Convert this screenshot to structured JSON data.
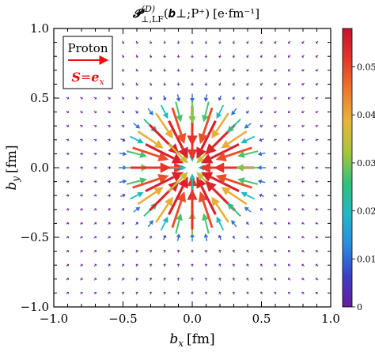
{
  "chart_data": {
    "type": "quiver",
    "title": {
      "symbol": "𝓟",
      "superscript": "(D)",
      "subscript": "⊥,LF",
      "arguments": "(𝒃⊥;P⁺)",
      "units": "[e·fm⁻¹]"
    },
    "xlabel": {
      "symbol": "b",
      "subscript": "x",
      "units": "[fm]"
    },
    "ylabel": {
      "symbol": "b",
      "subscript": "y",
      "units": "[fm]"
    },
    "xlim": [
      -1.0,
      1.0
    ],
    "ylim": [
      -1.0,
      1.0
    ],
    "x_ticks": [
      "−1.0",
      "−0.5",
      "0.0",
      "0.5",
      "1.0"
    ],
    "y_ticks": [
      "1.0",
      "0.5",
      "0.0",
      "−0.5",
      "−1.0"
    ],
    "grid": false,
    "legend": {
      "label": "Proton",
      "spin_symbol": "S",
      "spin_equals": "=",
      "spin_vector": "e",
      "spin_vector_subscript": "x",
      "arrow_color": "#ee1111",
      "spin_color": "#dd1111",
      "placement": "top-left"
    },
    "vector_field": {
      "grid_x_range": [
        -0.9,
        0.9
      ],
      "grid_y_range": [
        -0.9,
        0.9
      ],
      "grid_step": 0.1,
      "center": [
        0.0,
        0.0
      ],
      "direction": "radially inward, toward the origin",
      "max_magnitude_radius_fm": 0.25,
      "peak_magnitude": 0.056,
      "description": "Arrows point toward the origin; magnitude peaks near |b| ≈ 0.2–0.3 fm and decays outward."
    },
    "colorbar": {
      "min": 0.0,
      "max": 0.058,
      "ticks": [
        "0",
        "0.01",
        "0.02",
        "0.03",
        "0.04",
        "0.05"
      ],
      "tick_values": [
        0,
        0.01,
        0.02,
        0.03,
        0.04,
        0.05
      ],
      "colormap": [
        "#6a1b9a",
        "#3a3fc8",
        "#2a8ce0",
        "#21b8c6",
        "#2fc27a",
        "#a8c63a",
        "#e8b53a",
        "#ee7a2a",
        "#e8342a",
        "#c8102e"
      ]
    }
  }
}
